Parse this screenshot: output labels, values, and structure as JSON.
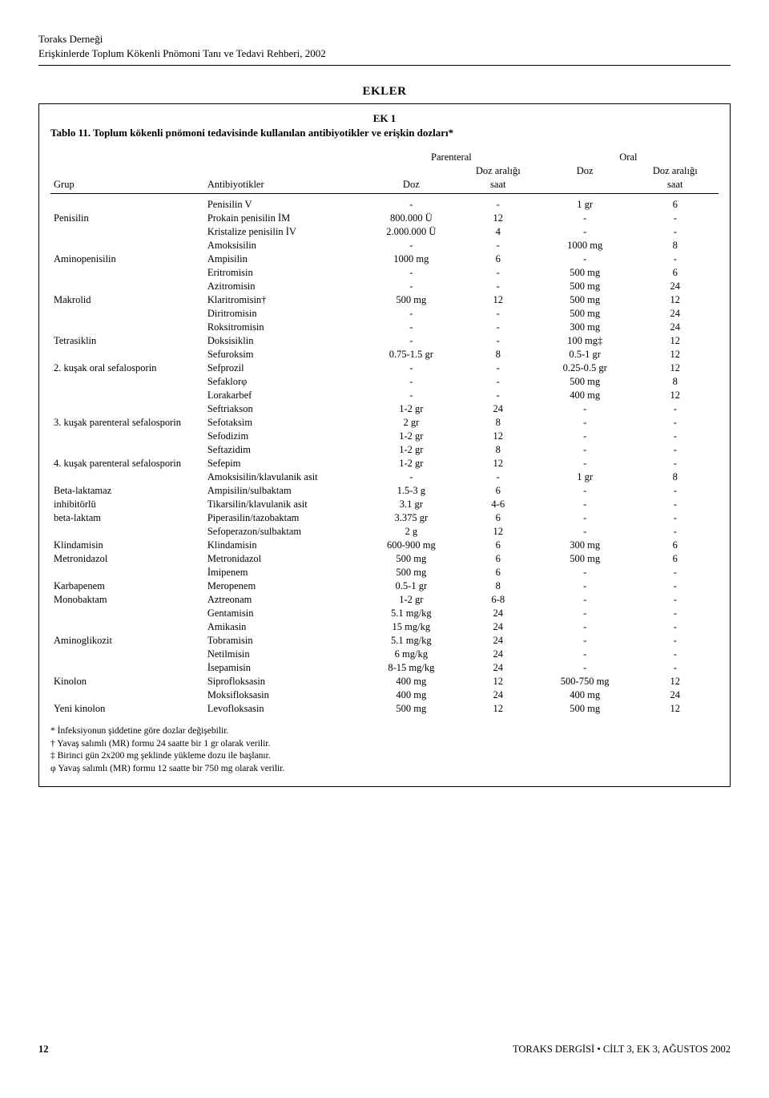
{
  "header": {
    "org": "Toraks Derneği",
    "title": "Erişkinlerde Toplum Kökenli Pnömoni Tanı ve Tedavi Rehberi, 2002"
  },
  "section_title": "EKLER",
  "ek_label": "EK 1",
  "table_title": "Tablo 11. Toplum kökenli pnömoni tedavisinde kullanılan antibiyotikler ve erişkin dozları*",
  "table": {
    "head": {
      "grup": "Grup",
      "antibiyotikler": "Antibiyotikler",
      "parenteral": "Parenteral",
      "oral": "Oral",
      "doz": "Doz",
      "doz_araligi": "Doz aralığı",
      "saat": "saat"
    },
    "rows": [
      {
        "grup": "",
        "ab": "Penisilin V",
        "pd": "-",
        "pa": "-",
        "od": "1 gr",
        "oa": "6"
      },
      {
        "grup": "Penisilin",
        "ab": "Prokain penisilin İM",
        "pd": "800.000 Ü",
        "pa": "12",
        "od": "-",
        "oa": "-"
      },
      {
        "grup": "",
        "ab": "Kristalize penisilin İV",
        "pd": "2.000.000 Ü",
        "pa": "4",
        "od": "-",
        "oa": "-"
      },
      {
        "grup": "",
        "ab": "Amoksisilin",
        "pd": "-",
        "pa": "-",
        "od": "1000 mg",
        "oa": "8"
      },
      {
        "grup": "Aminopenisilin",
        "ab": "Ampisilin",
        "pd": "1000 mg",
        "pa": "6",
        "od": "-",
        "oa": "-"
      },
      {
        "grup": "",
        "ab": "Eritromisin",
        "pd": "-",
        "pa": "-",
        "od": "500 mg",
        "oa": "6"
      },
      {
        "grup": "",
        "ab": "Azitromisin",
        "pd": "-",
        "pa": "-",
        "od": "500 mg",
        "oa": "24"
      },
      {
        "grup": "Makrolid",
        "ab": "Klaritromisin†",
        "pd": "500 mg",
        "pa": "12",
        "od": "500 mg",
        "oa": "12"
      },
      {
        "grup": "",
        "ab": "Diritromisin",
        "pd": "-",
        "pa": "-",
        "od": "500 mg",
        "oa": "24"
      },
      {
        "grup": "",
        "ab": "Roksitromisin",
        "pd": "-",
        "pa": "-",
        "od": "300 mg",
        "oa": "24"
      },
      {
        "grup": "Tetrasiklin",
        "ab": "Doksisiklin",
        "pd": "-",
        "pa": "-",
        "od": "100 mg‡",
        "oa": "12"
      },
      {
        "grup": "",
        "ab": "Sefuroksim",
        "pd": "0.75-1.5 gr",
        "pa": "8",
        "od": "0.5-1 gr",
        "oa": "12"
      },
      {
        "grup": "2. kuşak oral sefalosporin",
        "ab": "Sefprozil",
        "pd": "-",
        "pa": "-",
        "od": "0.25-0.5 gr",
        "oa": "12"
      },
      {
        "grup": "",
        "ab": "Sefaklorφ",
        "pd": "-",
        "pa": "-",
        "od": "500 mg",
        "oa": "8"
      },
      {
        "grup": "",
        "ab": "Lorakarbef",
        "pd": "-",
        "pa": "-",
        "od": "400 mg",
        "oa": "12"
      },
      {
        "grup": "",
        "ab": "Seftriakson",
        "pd": "1-2 gr",
        "pa": "24",
        "od": "-",
        "oa": "-"
      },
      {
        "grup": "3. kuşak parenteral sefalosporin",
        "ab": "Sefotaksim",
        "pd": "2 gr",
        "pa": "8",
        "od": "-",
        "oa": "-"
      },
      {
        "grup": "",
        "ab": "Sefodizim",
        "pd": "1-2 gr",
        "pa": "12",
        "od": "-",
        "oa": "-"
      },
      {
        "grup": "",
        "ab": "Seftazidim",
        "pd": "1-2 gr",
        "pa": "8",
        "od": "-",
        "oa": "-"
      },
      {
        "grup": "4. kuşak parenteral sefalosporin",
        "ab": "Sefepim",
        "pd": "1-2 gr",
        "pa": "12",
        "od": "-",
        "oa": "-"
      },
      {
        "grup": "",
        "ab": "Amoksisilin/klavulanik asit",
        "pd": "-",
        "pa": "-",
        "od": "1 gr",
        "oa": "8"
      },
      {
        "grup": "Beta-laktamaz",
        "ab": "Ampisilin/sulbaktam",
        "pd": "1.5-3 g",
        "pa": "6",
        "od": "-",
        "oa": "-"
      },
      {
        "grup": "inhibitörlü",
        "ab": "Tikarsilin/klavulanik asit",
        "pd": "3.1 gr",
        "pa": "4-6",
        "od": "-",
        "oa": "-"
      },
      {
        "grup": "beta-laktam",
        "ab": "Piperasilin/tazobaktam",
        "pd": "3.375 gr",
        "pa": "6",
        "od": "-",
        "oa": "-"
      },
      {
        "grup": "",
        "ab": "Sefoperazon/sulbaktam",
        "pd": "2 g",
        "pa": "12",
        "od": "-",
        "oa": "-"
      },
      {
        "grup": "Klindamisin",
        "ab": "Klindamisin",
        "pd": "600-900 mg",
        "pa": "6",
        "od": "300 mg",
        "oa": "6"
      },
      {
        "grup": "Metronidazol",
        "ab": "Metronidazol",
        "pd": "500 mg",
        "pa": "6",
        "od": "500 mg",
        "oa": "6"
      },
      {
        "grup": "",
        "ab": "İmipenem",
        "pd": "500 mg",
        "pa": "6",
        "od": "-",
        "oa": "-"
      },
      {
        "grup": "Karbapenem",
        "ab": "Meropenem",
        "pd": "0.5-1 gr",
        "pa": "8",
        "od": "-",
        "oa": "-"
      },
      {
        "grup": "Monobaktam",
        "ab": "Aztreonam",
        "pd": "1-2 gr",
        "pa": "6-8",
        "od": "-",
        "oa": "-"
      },
      {
        "grup": "",
        "ab": "Gentamisin",
        "pd": "5.1 mg/kg",
        "pa": "24",
        "od": "-",
        "oa": "-"
      },
      {
        "grup": "",
        "ab": "Amikasin",
        "pd": "15 mg/kg",
        "pa": "24",
        "od": "-",
        "oa": "-"
      },
      {
        "grup": "Aminoglikozit",
        "ab": "Tobramisin",
        "pd": "5.1 mg/kg",
        "pa": "24",
        "od": "-",
        "oa": "-"
      },
      {
        "grup": "",
        "ab": "Netilmisin",
        "pd": "6 mg/kg",
        "pa": "24",
        "od": "-",
        "oa": "-"
      },
      {
        "grup": "",
        "ab": "İsepamisin",
        "pd": "8-15 mg/kg",
        "pa": "24",
        "od": "-",
        "oa": "-"
      },
      {
        "grup": "Kinolon",
        "ab": "Siprofloksasin",
        "pd": "400 mg",
        "pa": "12",
        "od": "500-750 mg",
        "oa": "12"
      },
      {
        "grup": "",
        "ab": "Moksifloksasin",
        "pd": "400 mg",
        "pa": "24",
        "od": "400 mg",
        "oa": "24"
      },
      {
        "grup": "Yeni kinolon",
        "ab": "Levofloksasin",
        "pd": "500 mg",
        "pa": "12",
        "od": "500 mg",
        "oa": "12"
      }
    ]
  },
  "footnotes": {
    "a": "* İnfeksiyonun şiddetine göre dozlar değişebilir.",
    "b": "† Yavaş salımlı (MR) formu 24 saatte bir 1 gr olarak verilir.",
    "c": "‡ Birinci gün 2x200 mg şeklinde yükleme dozu ile başlanır.",
    "d": "φ Yavaş salımlı (MR) formu 12 saatte bir 750 mg olarak verilir."
  },
  "footer": {
    "page": "12",
    "journal": "TORAKS DERGİSİ • CİLT 3, EK 3, AĞUSTOS 2002"
  }
}
